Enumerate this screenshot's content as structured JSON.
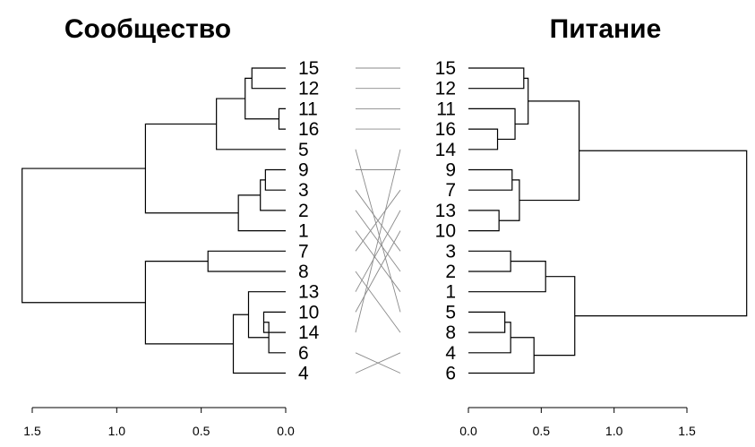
{
  "left": {
    "title": "Сообщество",
    "leaves": [
      "15",
      "12",
      "11",
      "16",
      "5",
      "9",
      "3",
      "2",
      "1",
      "7",
      "8",
      "13",
      "10",
      "14",
      "6",
      "4"
    ],
    "axis_ticks": [
      "1.5",
      "1.0",
      "0.5",
      "0.0"
    ]
  },
  "right": {
    "title": "Питание",
    "leaves": [
      "15",
      "12",
      "11",
      "16",
      "14",
      "9",
      "7",
      "13",
      "10",
      "3",
      "2",
      "1",
      "5",
      "8",
      "4",
      "6"
    ],
    "axis_ticks": [
      "0.0",
      "0.5",
      "1.0",
      "1.5"
    ]
  },
  "dendrograms": {
    "left": {
      "axis_values": [
        1.5,
        1.0,
        0.5,
        0.0
      ],
      "merges": [
        {
          "a": "15",
          "b": "12",
          "h": 0.2
        },
        {
          "a": "11",
          "b": "16",
          "h": 0.04
        },
        {
          "a": "15-12",
          "b": "11-16",
          "h": 0.24
        },
        {
          "a": "15-12-11-16",
          "b": "5",
          "h": 0.41
        },
        {
          "a": "9",
          "b": "3",
          "h": 0.12
        },
        {
          "a": "9-3",
          "b": "2",
          "h": 0.15
        },
        {
          "a": "9-3-2",
          "b": "1",
          "h": 0.28
        },
        {
          "a": "A",
          "b": "B",
          "h": 0.83
        },
        {
          "a": "7",
          "b": "8",
          "h": 0.46
        },
        {
          "a": "10",
          "b": "14",
          "h": 0.13
        },
        {
          "a": "10-14",
          "b": "6",
          "h": 0.1
        },
        {
          "a": "13",
          "b": "10-14-6",
          "h": 0.22
        },
        {
          "a": "13-10-14-6",
          "b": "4",
          "h": 0.31
        },
        {
          "a": "7-8",
          "b": "13-10-14-6-4",
          "h": 0.83
        },
        {
          "a": "top",
          "b": "bottom",
          "h": 1.56
        }
      ]
    },
    "right": {
      "axis_values": [
        0.0,
        0.5,
        1.0,
        1.5
      ],
      "merges": [
        {
          "a": "15",
          "b": "12",
          "h": 0.38
        },
        {
          "a": "16",
          "b": "14",
          "h": 0.2
        },
        {
          "a": "11",
          "b": "16-14",
          "h": 0.32
        },
        {
          "a": "15-12",
          "b": "11-16-14",
          "h": 0.41
        },
        {
          "a": "9",
          "b": "7",
          "h": 0.3
        },
        {
          "a": "13",
          "b": "10",
          "h": 0.21
        },
        {
          "a": "9-7",
          "b": "13-10",
          "h": 0.35
        },
        {
          "a": "group1",
          "b": "group2",
          "h": 0.76
        },
        {
          "a": "3",
          "b": "2",
          "h": 0.29
        },
        {
          "a": "3-2",
          "b": "1",
          "h": 0.53
        },
        {
          "a": "5",
          "b": "8",
          "h": 0.25
        },
        {
          "a": "5-8",
          "b": "4",
          "h": 0.29
        },
        {
          "a": "5-8-4",
          "b": "6",
          "h": 0.45
        },
        {
          "a": "3-2-1",
          "b": "5-8-4-6",
          "h": 0.73
        },
        {
          "a": "upper",
          "b": "lower",
          "h": 1.91
        }
      ]
    },
    "connections": [
      [
        "15",
        "15"
      ],
      [
        "12",
        "12"
      ],
      [
        "11",
        "11"
      ],
      [
        "16",
        "16"
      ],
      [
        "5",
        "5"
      ],
      [
        "9",
        "9"
      ],
      [
        "3",
        "3"
      ],
      [
        "2",
        "2"
      ],
      [
        "1",
        "1"
      ],
      [
        "7",
        "7"
      ],
      [
        "8",
        "8"
      ],
      [
        "13",
        "13"
      ],
      [
        "10",
        "10"
      ],
      [
        "14",
        "14"
      ],
      [
        "6",
        "6"
      ],
      [
        "4",
        "4"
      ]
    ]
  }
}
